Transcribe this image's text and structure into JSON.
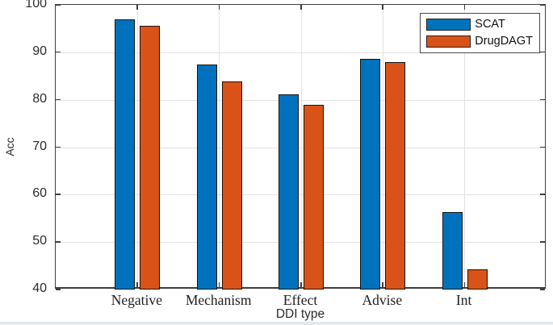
{
  "figure": {
    "background": "#ffffff",
    "axis_color": "#3e3e3e",
    "grid_color": "#e2e2e2",
    "bar_edge_color": "#141414",
    "bottom_strip_color": "#e4e9ec"
  },
  "chart_data": {
    "type": "bar",
    "title": "",
    "xlabel": "DDI type",
    "ylabel": "Acc",
    "categories": [
      "Negative",
      "Mechanism",
      "Effect",
      "Advise",
      "Int"
    ],
    "series": [
      {
        "name": "SCAT",
        "color": "#0072BD",
        "values": [
          97.0,
          87.4,
          81.1,
          88.6,
          56.3
        ]
      },
      {
        "name": "DrugDAGT",
        "color": "#D95319",
        "values": [
          95.6,
          83.9,
          78.9,
          87.9,
          44.2
        ]
      }
    ],
    "ylim": [
      40,
      100
    ],
    "yticks": [
      40,
      50,
      60,
      70,
      80,
      90,
      100
    ],
    "grid": true,
    "legend_position": "top-right"
  }
}
